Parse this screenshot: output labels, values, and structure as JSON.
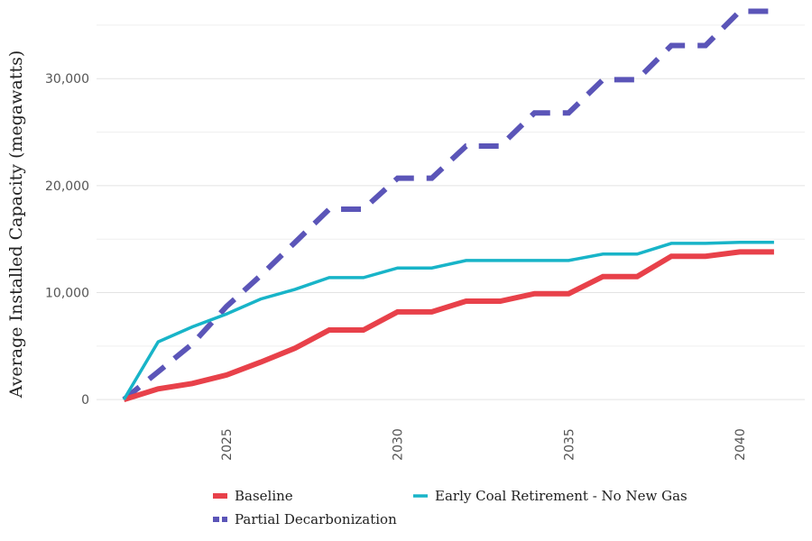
{
  "chart_data": {
    "type": "line",
    "title": "",
    "xlabel": "",
    "ylabel": "Average Installed Capacity (megawatts)",
    "xlim": [
      2021.2,
      2041.9
    ],
    "ylim": [
      -1000,
      35500
    ],
    "x_ticks": [
      2025,
      2030,
      2035,
      2040
    ],
    "y_ticks": [
      0,
      10000,
      20000,
      30000
    ],
    "y_tick_labels": [
      "0",
      "10,000",
      "20,000",
      "30,000"
    ],
    "x_tick_labels": [
      "2025",
      "2030",
      "2035",
      "2040"
    ],
    "grid": true,
    "legend_position": "bottom",
    "x": [
      2022,
      2023,
      2024,
      2025,
      2026,
      2027,
      2028,
      2029,
      2030,
      2031,
      2032,
      2033,
      2034,
      2035,
      2036,
      2037,
      2038,
      2039,
      2040,
      2041
    ],
    "series": [
      {
        "name": "Baseline",
        "color": "#e8414a",
        "dash": "solid",
        "values": [
          0,
          1000,
          1500,
          2300,
          3500,
          4800,
          6500,
          6500,
          8200,
          8200,
          9200,
          9200,
          9900,
          9900,
          11500,
          11500,
          13400,
          13400,
          13800,
          13800
        ]
      },
      {
        "name": "Partial Decarbonization",
        "color": "#5b55b8",
        "dash": "dashed",
        "values": [
          0,
          2600,
          5200,
          8700,
          11600,
          14700,
          17800,
          17800,
          20700,
          20700,
          23700,
          23700,
          26800,
          26800,
          29900,
          29900,
          33100,
          33100,
          36300,
          36300
        ]
      },
      {
        "name": "Early Coal Retirement - No New Gas",
        "color": "#18b4c8",
        "dash": "solid",
        "values": [
          0,
          5400,
          6800,
          8000,
          9400,
          10300,
          11400,
          11400,
          12300,
          12300,
          13000,
          13000,
          13000,
          13000,
          13600,
          13600,
          14600,
          14600,
          14700,
          14700
        ]
      }
    ]
  }
}
